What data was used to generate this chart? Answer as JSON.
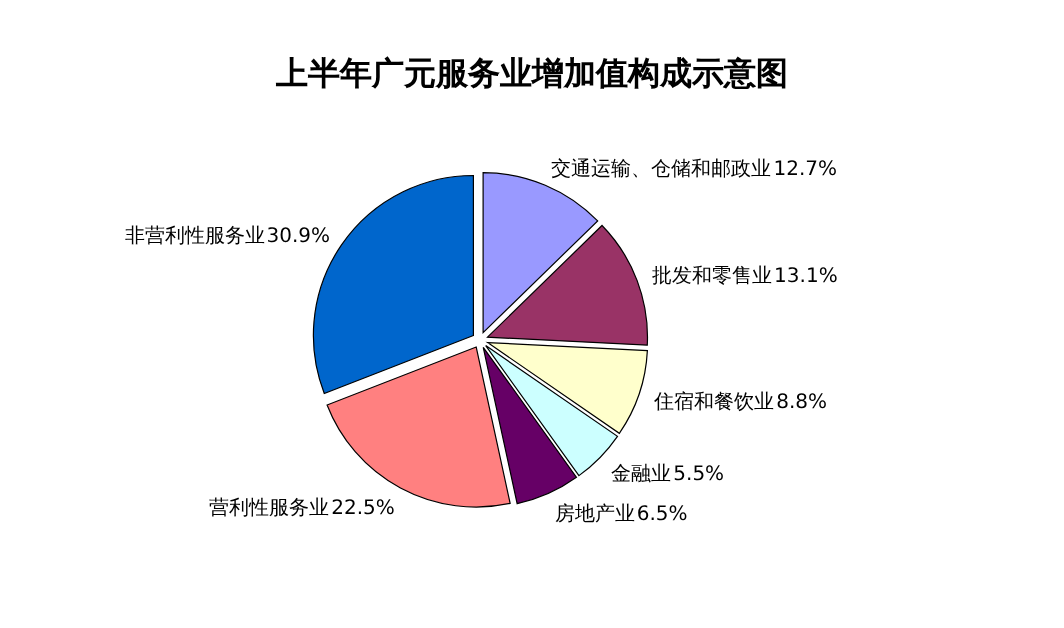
{
  "chart_data": {
    "type": "pie",
    "title": "上半年广元服务业增加值构成示意图",
    "categories": [
      "交通运输、仓储和邮政业",
      "批发和零售业",
      "住宿和餐饮业",
      "金融业",
      "房地产业",
      "营利性服务业",
      "非营利性服务业"
    ],
    "values": [
      12.7,
      13.1,
      8.8,
      5.5,
      6.5,
      22.5,
      30.9
    ],
    "colors": [
      "#9999ff",
      "#993366",
      "#ffffcc",
      "#ccffff",
      "#660066",
      "#ff8080",
      "#0066cc"
    ],
    "value_labels": [
      "12.7%",
      "13.1%",
      "8.8%",
      "5.5%",
      "6.5%",
      "22.5%",
      "30.9%"
    ]
  }
}
